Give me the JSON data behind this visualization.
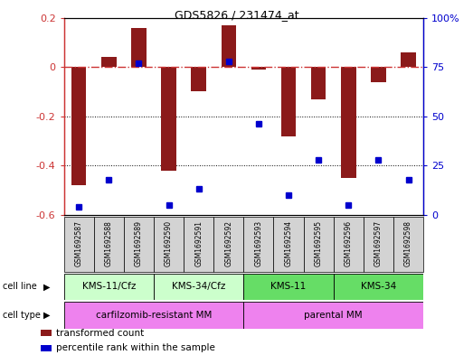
{
  "title": "GDS5826 / 231474_at",
  "samples": [
    "GSM1692587",
    "GSM1692588",
    "GSM1692589",
    "GSM1692590",
    "GSM1692591",
    "GSM1692592",
    "GSM1692593",
    "GSM1692594",
    "GSM1692595",
    "GSM1692596",
    "GSM1692597",
    "GSM1692598"
  ],
  "transformed_count": [
    -0.48,
    0.04,
    0.16,
    -0.42,
    -0.1,
    0.17,
    -0.01,
    -0.28,
    -0.13,
    -0.45,
    -0.06,
    0.06
  ],
  "percentile_rank": [
    4,
    18,
    77,
    5,
    13,
    78,
    46,
    10,
    28,
    5,
    28,
    18
  ],
  "ylim_left": [
    -0.6,
    0.2
  ],
  "ylim_right": [
    0,
    100
  ],
  "yticks_left": [
    -0.6,
    -0.4,
    -0.2,
    0.0,
    0.2
  ],
  "yticks_right": [
    0,
    25,
    50,
    75,
    100
  ],
  "bar_color": "#8B1A1A",
  "dot_color": "#0000CD",
  "hline_color": "#CC3333",
  "grid_color": "black",
  "cell_line_groups": [
    {
      "label": "KMS-11/Cfz",
      "start": 0,
      "end": 3,
      "color": "#CCFFCC"
    },
    {
      "label": "KMS-34/Cfz",
      "start": 3,
      "end": 6,
      "color": "#CCFFCC"
    },
    {
      "label": "KMS-11",
      "start": 6,
      "end": 9,
      "color": "#66DD66"
    },
    {
      "label": "KMS-34",
      "start": 9,
      "end": 12,
      "color": "#66DD66"
    }
  ],
  "cell_type_groups": [
    {
      "label": "carfilzomib-resistant MM",
      "start": 0,
      "end": 6,
      "color": "#EE82EE"
    },
    {
      "label": "parental MM",
      "start": 6,
      "end": 12,
      "color": "#EE82EE"
    }
  ],
  "cell_line_label": "cell line",
  "cell_type_label": "cell type",
  "legend_items": [
    {
      "color": "#8B1A1A",
      "label": "transformed count"
    },
    {
      "color": "#0000CD",
      "label": "percentile rank within the sample"
    }
  ],
  "bg_color": "#FFFFFF",
  "label_color_left": "#CC3333",
  "label_color_right": "#0000CD",
  "bar_width": 0.5,
  "dot_size": 5
}
